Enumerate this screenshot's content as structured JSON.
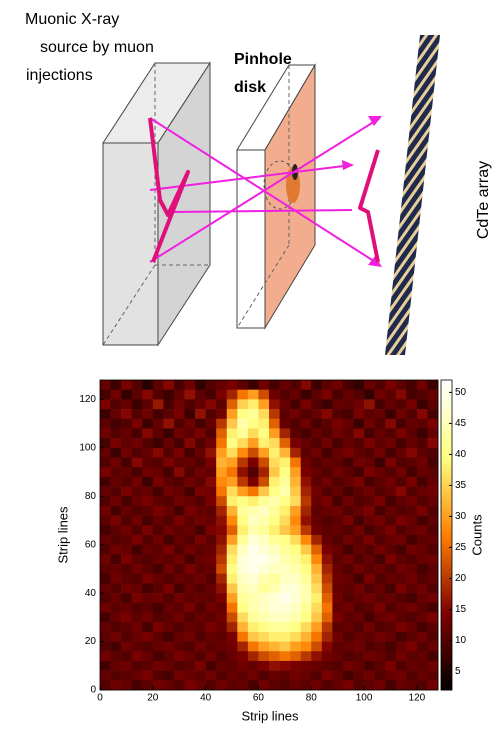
{
  "diagram": {
    "source_label": [
      "Muonic X-ray",
      "source by muon",
      "injections"
    ],
    "pinhole_label": [
      "Pinhole",
      "disk"
    ],
    "detector_label": "CdTe array"
  },
  "chart_data": {
    "type": "heatmap",
    "xlabel": "Strip lines",
    "ylabel": "Strip lines",
    "colorbar_label": "Counts",
    "colormap": "afmhot",
    "xlim": [
      0,
      128
    ],
    "ylim": [
      0,
      128
    ],
    "xticks": [
      0,
      20,
      40,
      60,
      80,
      100,
      120
    ],
    "yticks": [
      0,
      20,
      40,
      60,
      80,
      100,
      120
    ],
    "zlim": [
      2,
      52
    ],
    "zticks": [
      5,
      10,
      15,
      20,
      25,
      30,
      35,
      40,
      45,
      50
    ],
    "z": [
      [
        12,
        8,
        14,
        10,
        6,
        11,
        15,
        9,
        13,
        7,
        10,
        12,
        14,
        11,
        8,
        13,
        9,
        12,
        10,
        15,
        8,
        11,
        13,
        9,
        7,
        12,
        10,
        14,
        11,
        9,
        13,
        8
      ],
      [
        9,
        13,
        7,
        11,
        15,
        10,
        8,
        12,
        16,
        11,
        9,
        14,
        18,
        26,
        30,
        22,
        13,
        10,
        12,
        8,
        11,
        14,
        9,
        12,
        10,
        7,
        13,
        11,
        15,
        9,
        10,
        12
      ],
      [
        14,
        10,
        12,
        8,
        11,
        17,
        9,
        13,
        10,
        12,
        15,
        11,
        24,
        35,
        38,
        30,
        16,
        12,
        9,
        14,
        10,
        8,
        12,
        11,
        13,
        16,
        9,
        12,
        10,
        14,
        8,
        11
      ],
      [
        8,
        12,
        15,
        10,
        13,
        9,
        11,
        14,
        8,
        16,
        10,
        13,
        30,
        40,
        42,
        36,
        20,
        11,
        13,
        10,
        12,
        15,
        10,
        9,
        14,
        11,
        12,
        8,
        13,
        10,
        15,
        9
      ],
      [
        11,
        9,
        10,
        14,
        8,
        12,
        16,
        10,
        13,
        9,
        12,
        20,
        34,
        44,
        40,
        38,
        24,
        12,
        10,
        13,
        9,
        11,
        14,
        12,
        8,
        13,
        10,
        15,
        9,
        12,
        11,
        14
      ],
      [
        13,
        10,
        12,
        9,
        15,
        11,
        8,
        13,
        11,
        14,
        10,
        24,
        38,
        42,
        36,
        40,
        30,
        18,
        11,
        9,
        12,
        10,
        13,
        11,
        15,
        9,
        12,
        10,
        14,
        11,
        8,
        12
      ],
      [
        9,
        14,
        11,
        13,
        10,
        8,
        12,
        9,
        15,
        10,
        13,
        26,
        40,
        36,
        30,
        38,
        36,
        24,
        14,
        12,
        10,
        13,
        9,
        12,
        10,
        14,
        11,
        13,
        9,
        12,
        10,
        15
      ],
      [
        12,
        8,
        13,
        10,
        12,
        15,
        10,
        14,
        9,
        12,
        16,
        30,
        36,
        28,
        22,
        30,
        38,
        32,
        18,
        11,
        13,
        9,
        12,
        14,
        11,
        10,
        13,
        9,
        12,
        15,
        11,
        10
      ],
      [
        10,
        13,
        9,
        15,
        11,
        10,
        14,
        11,
        12,
        10,
        14,
        32,
        30,
        20,
        14,
        22,
        36,
        38,
        26,
        13,
        10,
        12,
        11,
        9,
        13,
        12,
        8,
        14,
        10,
        11,
        13,
        9
      ],
      [
        14,
        11,
        12,
        9,
        13,
        12,
        9,
        15,
        10,
        13,
        12,
        30,
        26,
        16,
        10,
        18,
        34,
        40,
        30,
        14,
        12,
        10,
        13,
        11,
        9,
        14,
        12,
        10,
        13,
        9,
        12,
        11
      ],
      [
        9,
        12,
        10,
        13,
        8,
        14,
        11,
        10,
        13,
        11,
        15,
        28,
        30,
        20,
        14,
        22,
        38,
        42,
        32,
        16,
        11,
        13,
        10,
        12,
        14,
        9,
        11,
        13,
        10,
        14,
        9,
        12
      ],
      [
        12,
        10,
        14,
        11,
        12,
        9,
        13,
        12,
        9,
        14,
        13,
        26,
        36,
        30,
        26,
        34,
        40,
        44,
        34,
        18,
        13,
        10,
        12,
        9,
        11,
        13,
        10,
        12,
        15,
        10,
        12,
        13
      ],
      [
        10,
        13,
        9,
        12,
        14,
        11,
        10,
        13,
        12,
        10,
        14,
        22,
        38,
        40,
        38,
        42,
        44,
        40,
        36,
        20,
        12,
        14,
        9,
        13,
        10,
        11,
        14,
        9,
        11,
        13,
        10,
        12
      ],
      [
        13,
        9,
        12,
        10,
        11,
        14,
        12,
        9,
        14,
        12,
        11,
        18,
        32,
        42,
        44,
        46,
        42,
        38,
        30,
        18,
        11,
        12,
        13,
        10,
        12,
        14,
        9,
        12,
        10,
        11,
        14,
        10
      ],
      [
        11,
        14,
        10,
        13,
        9,
        12,
        10,
        14,
        11,
        13,
        12,
        16,
        28,
        40,
        46,
        44,
        40,
        36,
        28,
        16,
        12,
        10,
        11,
        14,
        9,
        12,
        13,
        10,
        14,
        12,
        9,
        11
      ],
      [
        9,
        11,
        13,
        10,
        14,
        10,
        13,
        11,
        12,
        9,
        14,
        15,
        24,
        38,
        44,
        42,
        38,
        34,
        30,
        20,
        13,
        11,
        12,
        10,
        13,
        9,
        11,
        14,
        10,
        12,
        13,
        10
      ],
      [
        12,
        10,
        11,
        14,
        10,
        13,
        9,
        12,
        10,
        14,
        11,
        16,
        30,
        42,
        48,
        46,
        42,
        40,
        36,
        28,
        18,
        12,
        10,
        13,
        11,
        14,
        10,
        12,
        13,
        9,
        11,
        12
      ],
      [
        10,
        13,
        12,
        9,
        12,
        11,
        14,
        10,
        13,
        11,
        12,
        18,
        36,
        46,
        50,
        48,
        46,
        42,
        40,
        34,
        24,
        14,
        12,
        9,
        12,
        10,
        13,
        11,
        9,
        13,
        12,
        10
      ],
      [
        13,
        9,
        14,
        11,
        10,
        12,
        11,
        13,
        9,
        12,
        13,
        20,
        38,
        48,
        50,
        50,
        48,
        44,
        42,
        38,
        28,
        16,
        11,
        13,
        10,
        12,
        9,
        14,
        11,
        10,
        12,
        13
      ],
      [
        11,
        12,
        10,
        13,
        11,
        9,
        13,
        10,
        14,
        11,
        12,
        22,
        40,
        48,
        50,
        48,
        46,
        46,
        44,
        40,
        32,
        18,
        12,
        10,
        13,
        11,
        12,
        10,
        13,
        12,
        9,
        11
      ],
      [
        9,
        13,
        11,
        10,
        14,
        12,
        10,
        12,
        11,
        13,
        10,
        18,
        38,
        46,
        48,
        44,
        42,
        46,
        46,
        42,
        34,
        20,
        13,
        12,
        9,
        14,
        10,
        12,
        11,
        13,
        10,
        12
      ],
      [
        12,
        10,
        13,
        12,
        9,
        11,
        14,
        9,
        12,
        10,
        12,
        16,
        34,
        44,
        46,
        42,
        44,
        48,
        48,
        44,
        36,
        22,
        12,
        11,
        13,
        10,
        12,
        9,
        14,
        11,
        13,
        10
      ],
      [
        10,
        12,
        9,
        14,
        12,
        13,
        10,
        13,
        11,
        12,
        11,
        14,
        30,
        42,
        44,
        46,
        48,
        50,
        48,
        44,
        38,
        24,
        13,
        10,
        12,
        13,
        11,
        12,
        10,
        9,
        12,
        13
      ],
      [
        13,
        11,
        12,
        10,
        11,
        9,
        12,
        11,
        14,
        10,
        13,
        12,
        26,
        40,
        44,
        46,
        48,
        48,
        46,
        42,
        36,
        26,
        12,
        13,
        10,
        11,
        14,
        10,
        12,
        13,
        11,
        9
      ],
      [
        9,
        12,
        14,
        11,
        13,
        10,
        11,
        13,
        10,
        12,
        11,
        13,
        22,
        36,
        42,
        44,
        46,
        46,
        44,
        40,
        34,
        24,
        14,
        11,
        12,
        9,
        12,
        13,
        11,
        10,
        12,
        14
      ],
      [
        12,
        10,
        11,
        13,
        9,
        14,
        12,
        10,
        12,
        11,
        14,
        12,
        18,
        32,
        38,
        40,
        42,
        42,
        40,
        36,
        30,
        20,
        11,
        12,
        10,
        13,
        10,
        11,
        14,
        12,
        9,
        11
      ],
      [
        11,
        13,
        10,
        12,
        14,
        11,
        9,
        12,
        13,
        10,
        12,
        11,
        14,
        26,
        34,
        36,
        38,
        38,
        36,
        32,
        26,
        18,
        13,
        10,
        12,
        11,
        13,
        12,
        9,
        11,
        13,
        10
      ],
      [
        10,
        9,
        13,
        11,
        10,
        12,
        13,
        11,
        10,
        13,
        11,
        12,
        13,
        18,
        26,
        30,
        32,
        34,
        30,
        28,
        22,
        15,
        11,
        12,
        13,
        10,
        11,
        9,
        12,
        14,
        10,
        12
      ],
      [
        13,
        11,
        10,
        14,
        12,
        9,
        11,
        14,
        12,
        10,
        13,
        10,
        12,
        14,
        18,
        22,
        24,
        26,
        24,
        20,
        16,
        13,
        12,
        10,
        11,
        13,
        12,
        10,
        13,
        11,
        12,
        9
      ],
      [
        9,
        12,
        13,
        10,
        11,
        13,
        12,
        10,
        11,
        14,
        9,
        12,
        11,
        13,
        12,
        14,
        16,
        15,
        14,
        13,
        12,
        11,
        10,
        13,
        12,
        9,
        11,
        14,
        10,
        12,
        11,
        13
      ],
      [
        12,
        10,
        11,
        12,
        14,
        10,
        9,
        13,
        12,
        11,
        13,
        10,
        12,
        11,
        13,
        10,
        12,
        11,
        13,
        12,
        10,
        14,
        12,
        9,
        11,
        13,
        10,
        12,
        13,
        10,
        12,
        11
      ],
      [
        10,
        13,
        12,
        9,
        11,
        13,
        12,
        10,
        14,
        12,
        10,
        13,
        11,
        12,
        9,
        13,
        11,
        10,
        12,
        11,
        13,
        10,
        12,
        14,
        10,
        11,
        13,
        9,
        12,
        11,
        10,
        13
      ]
    ]
  }
}
